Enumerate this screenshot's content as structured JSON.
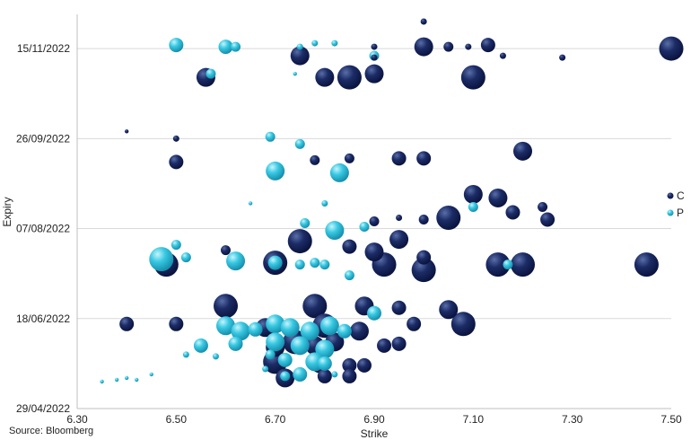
{
  "source": "Source: Bloomberg",
  "chart_data": {
    "type": "scatter",
    "subtype": "bubble",
    "xlabel": "Strike",
    "ylabel": "Expiry",
    "xlim": [
      6.3,
      7.5
    ],
    "x_ticks": [
      "6.30",
      "6.50",
      "6.70",
      "6.90",
      "7.10",
      "7.30",
      "7.50"
    ],
    "ylim": [
      "2022-04-29",
      "2022-12-04"
    ],
    "y_ticks": [
      {
        "value": "2022-04-29",
        "label": "29/04/2022"
      },
      {
        "value": "2022-06-18",
        "label": "18/06/2022"
      },
      {
        "value": "2022-08-07",
        "label": "07/08/2022"
      },
      {
        "value": "2022-09-26",
        "label": "26/09/2022"
      },
      {
        "value": "2022-11-15",
        "label": "15/11/2022"
      }
    ],
    "grid": {
      "horizontal": true,
      "vertical": false
    },
    "legend_position": "right",
    "series": [
      {
        "name": "C",
        "color": "#14245a",
        "points": [
          [
            7.0,
            "2022-11-30",
            2
          ],
          [
            6.9,
            "2022-11-16",
            2
          ],
          [
            7.0,
            "2022-11-16",
            5
          ],
          [
            7.05,
            "2022-11-16",
            3
          ],
          [
            7.09,
            "2022-11-16",
            2
          ],
          [
            7.13,
            "2022-11-17",
            4
          ],
          [
            7.5,
            "2022-11-15",
            6
          ],
          [
            6.75,
            "2022-11-11",
            5
          ],
          [
            6.9,
            "2022-11-10",
            2
          ],
          [
            7.16,
            "2022-11-11",
            2
          ],
          [
            7.28,
            "2022-11-10",
            2
          ],
          [
            6.56,
            "2022-10-30",
            5
          ],
          [
            6.8,
            "2022-10-30",
            5
          ],
          [
            6.85,
            "2022-10-30",
            6
          ],
          [
            6.9,
            "2022-11-01",
            5
          ],
          [
            7.1,
            "2022-10-30",
            6
          ],
          [
            6.4,
            "2022-09-30",
            1
          ],
          [
            6.5,
            "2022-09-26",
            2
          ],
          [
            7.2,
            "2022-09-19",
            5
          ],
          [
            6.5,
            "2022-09-13",
            4
          ],
          [
            6.78,
            "2022-09-14",
            3
          ],
          [
            6.85,
            "2022-09-15",
            3
          ],
          [
            6.95,
            "2022-09-15",
            4
          ],
          [
            7.0,
            "2022-09-15",
            4
          ],
          [
            7.1,
            "2022-08-26",
            5
          ],
          [
            7.15,
            "2022-08-24",
            5
          ],
          [
            7.18,
            "2022-08-16",
            4
          ],
          [
            7.24,
            "2022-08-19",
            3
          ],
          [
            7.25,
            "2022-08-12",
            4
          ],
          [
            7.05,
            "2022-08-13",
            6
          ],
          [
            6.9,
            "2022-08-11",
            3
          ],
          [
            6.95,
            "2022-08-13",
            2
          ],
          [
            7.0,
            "2022-08-12",
            3
          ],
          [
            6.75,
            "2022-07-31",
            6
          ],
          [
            6.95,
            "2022-08-01",
            5
          ],
          [
            6.85,
            "2022-07-28",
            4
          ],
          [
            6.6,
            "2022-07-26",
            3
          ],
          [
            6.9,
            "2022-07-25",
            5
          ],
          [
            7.0,
            "2022-07-22",
            4
          ],
          [
            6.48,
            "2022-07-18",
            6
          ],
          [
            6.7,
            "2022-07-19",
            6
          ],
          [
            6.92,
            "2022-07-18",
            6
          ],
          [
            7.0,
            "2022-07-15",
            6
          ],
          [
            7.15,
            "2022-07-18",
            6
          ],
          [
            7.2,
            "2022-07-18",
            6
          ],
          [
            7.45,
            "2022-07-18",
            6
          ],
          [
            6.6,
            "2022-06-25",
            6
          ],
          [
            6.78,
            "2022-06-25",
            6
          ],
          [
            6.88,
            "2022-06-25",
            5
          ],
          [
            6.95,
            "2022-06-24",
            4
          ],
          [
            7.05,
            "2022-06-23",
            5
          ],
          [
            6.4,
            "2022-06-15",
            4
          ],
          [
            6.5,
            "2022-06-15",
            4
          ],
          [
            6.68,
            "2022-06-13",
            5
          ],
          [
            6.8,
            "2022-06-14",
            6
          ],
          [
            6.87,
            "2022-06-11",
            5
          ],
          [
            6.98,
            "2022-06-15",
            4
          ],
          [
            7.08,
            "2022-06-15",
            6
          ],
          [
            6.7,
            "2022-06-02",
            5
          ],
          [
            6.74,
            "2022-06-05",
            6
          ],
          [
            6.78,
            "2022-06-03",
            5
          ],
          [
            6.82,
            "2022-06-05",
            5
          ],
          [
            6.92,
            "2022-06-03",
            4
          ],
          [
            6.95,
            "2022-06-04",
            4
          ],
          [
            6.7,
            "2022-05-25",
            6
          ],
          [
            6.79,
            "2022-05-24",
            5
          ],
          [
            6.85,
            "2022-05-23",
            4
          ],
          [
            6.88,
            "2022-05-23",
            4
          ],
          [
            6.72,
            "2022-05-16",
            5
          ],
          [
            6.8,
            "2022-05-17",
            4
          ],
          [
            6.85,
            "2022-05-17",
            4
          ]
        ]
      },
      {
        "name": "P",
        "color": "#2ec5e0",
        "points": [
          [
            6.5,
            "2022-11-17",
            4
          ],
          [
            6.6,
            "2022-11-16",
            4
          ],
          [
            6.62,
            "2022-11-16",
            3
          ],
          [
            6.75,
            "2022-11-16",
            2
          ],
          [
            6.78,
            "2022-11-18",
            2
          ],
          [
            6.82,
            "2022-11-18",
            2
          ],
          [
            6.9,
            "2022-11-11",
            3
          ],
          [
            6.57,
            "2022-11-01",
            3
          ],
          [
            6.74,
            "2022-11-01",
            1
          ],
          [
            6.69,
            "2022-09-27",
            3
          ],
          [
            6.75,
            "2022-09-23",
            3
          ],
          [
            6.7,
            "2022-09-08",
            5
          ],
          [
            6.83,
            "2022-09-07",
            5
          ],
          [
            6.8,
            "2022-08-21",
            2
          ],
          [
            6.65,
            "2022-08-21",
            1
          ],
          [
            6.76,
            "2022-08-10",
            3
          ],
          [
            6.82,
            "2022-08-06",
            5
          ],
          [
            6.88,
            "2022-08-08",
            3
          ],
          [
            7.1,
            "2022-08-19",
            3
          ],
          [
            6.5,
            "2022-07-29",
            3
          ],
          [
            6.47,
            "2022-07-21",
            6
          ],
          [
            6.52,
            "2022-07-22",
            3
          ],
          [
            6.62,
            "2022-07-20",
            5
          ],
          [
            6.7,
            "2022-07-19",
            4
          ],
          [
            6.75,
            "2022-07-18",
            3
          ],
          [
            6.78,
            "2022-07-19",
            3
          ],
          [
            6.8,
            "2022-07-18",
            3
          ],
          [
            7.17,
            "2022-07-18",
            3
          ],
          [
            6.85,
            "2022-07-12",
            3
          ],
          [
            6.9,
            "2022-06-21",
            4
          ],
          [
            6.6,
            "2022-06-14",
            5
          ],
          [
            6.63,
            "2022-06-11",
            5
          ],
          [
            6.66,
            "2022-06-12",
            4
          ],
          [
            6.7,
            "2022-06-15",
            5
          ],
          [
            6.73,
            "2022-06-13",
            5
          ],
          [
            6.77,
            "2022-06-11",
            5
          ],
          [
            6.81,
            "2022-06-14",
            5
          ],
          [
            6.84,
            "2022-06-11",
            4
          ],
          [
            6.62,
            "2022-06-04",
            4
          ],
          [
            6.7,
            "2022-06-05",
            5
          ],
          [
            6.75,
            "2022-06-03",
            5
          ],
          [
            6.8,
            "2022-06-01",
            5
          ],
          [
            6.55,
            "2022-06-03",
            4
          ],
          [
            6.72,
            "2022-05-26",
            4
          ],
          [
            6.78,
            "2022-05-25",
            5
          ],
          [
            6.8,
            "2022-05-24",
            4
          ],
          [
            6.75,
            "2022-05-18",
            4
          ],
          [
            6.72,
            "2022-05-17",
            3
          ],
          [
            6.35,
            "2022-05-14",
            1
          ],
          [
            6.38,
            "2022-05-15",
            1
          ],
          [
            6.4,
            "2022-05-16",
            1
          ],
          [
            6.42,
            "2022-05-15",
            1
          ],
          [
            6.45,
            "2022-05-18",
            1
          ],
          [
            6.52,
            "2022-05-29",
            2
          ],
          [
            6.58,
            "2022-05-28",
            2
          ],
          [
            6.68,
            "2022-05-21",
            2
          ],
          [
            6.69,
            "2022-05-29",
            3
          ],
          [
            6.82,
            "2022-05-18",
            2
          ]
        ]
      }
    ]
  }
}
